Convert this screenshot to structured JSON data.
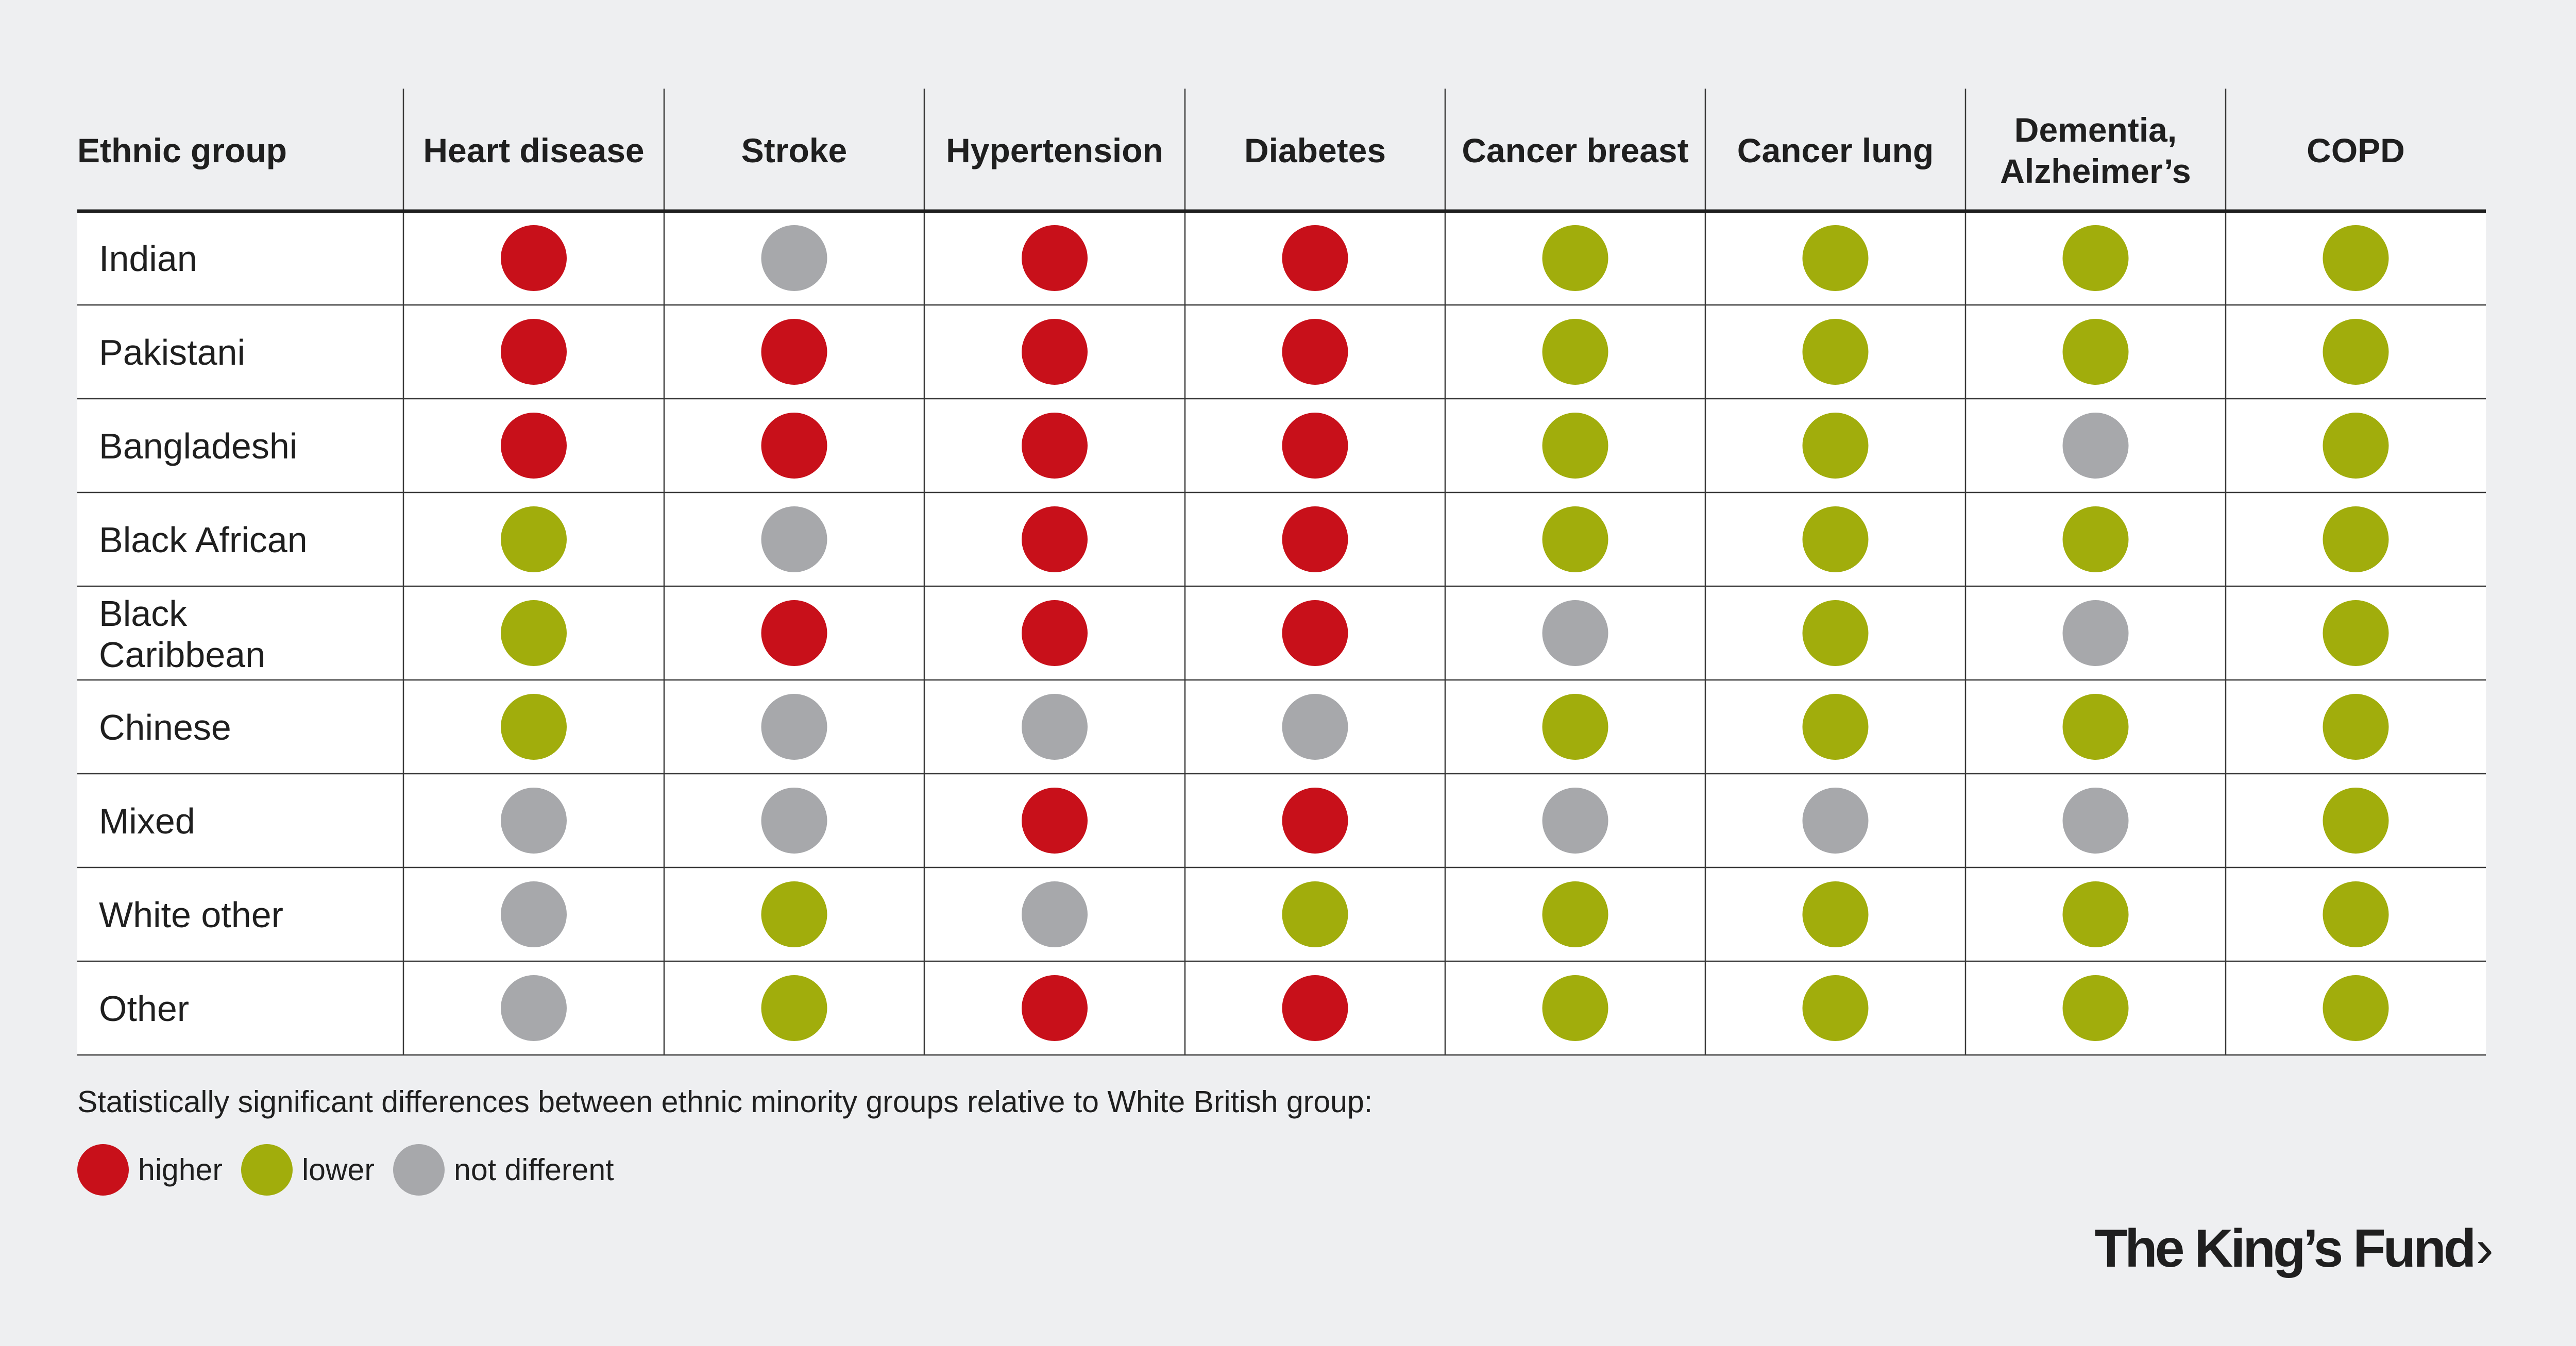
{
  "chart_data": {
    "type": "table",
    "row_header_label": "Ethnic group",
    "columns": [
      "Heart disease",
      "Stroke",
      "Hypertension",
      "Diabetes",
      "Cancer breast",
      "Cancer lung",
      "Dementia, Alzheimer’s",
      "COPD"
    ],
    "rows": [
      {
        "group": "Indian",
        "values": [
          "higher",
          "not different",
          "higher",
          "higher",
          "lower",
          "lower",
          "lower",
          "lower"
        ]
      },
      {
        "group": "Pakistani",
        "values": [
          "higher",
          "higher",
          "higher",
          "higher",
          "lower",
          "lower",
          "lower",
          "lower"
        ]
      },
      {
        "group": "Bangladeshi",
        "values": [
          "higher",
          "higher",
          "higher",
          "higher",
          "lower",
          "lower",
          "not different",
          "lower"
        ]
      },
      {
        "group": "Black African",
        "values": [
          "lower",
          "not different",
          "higher",
          "higher",
          "lower",
          "lower",
          "lower",
          "lower"
        ]
      },
      {
        "group": "Black Caribbean",
        "values": [
          "lower",
          "higher",
          "higher",
          "higher",
          "not different",
          "lower",
          "not different",
          "lower"
        ]
      },
      {
        "group": "Chinese",
        "values": [
          "lower",
          "not different",
          "not different",
          "not different",
          "lower",
          "lower",
          "lower",
          "lower"
        ]
      },
      {
        "group": "Mixed",
        "values": [
          "not different",
          "not different",
          "higher",
          "higher",
          "not different",
          "not different",
          "not different",
          "lower"
        ]
      },
      {
        "group": "White other",
        "values": [
          "not different",
          "lower",
          "not different",
          "lower",
          "lower",
          "lower",
          "lower",
          "lower"
        ]
      },
      {
        "group": "Other",
        "values": [
          "not different",
          "lower",
          "higher",
          "higher",
          "lower",
          "lower",
          "lower",
          "lower"
        ]
      }
    ],
    "categories": {
      "higher": "#c8101a",
      "lower": "#a1ad0c",
      "not different": "#a7a8ab"
    }
  },
  "legend": {
    "title": "Statistically significant differences between ethnic minority groups relative to White British group:",
    "items": [
      {
        "label": "higher",
        "color": "#c8101a"
      },
      {
        "label": "lower",
        "color": "#a1ad0c"
      },
      {
        "label": "not different",
        "color": "#a7a8ab"
      }
    ]
  },
  "brand": {
    "name": "The King’s Fund",
    "chevron": "›"
  }
}
